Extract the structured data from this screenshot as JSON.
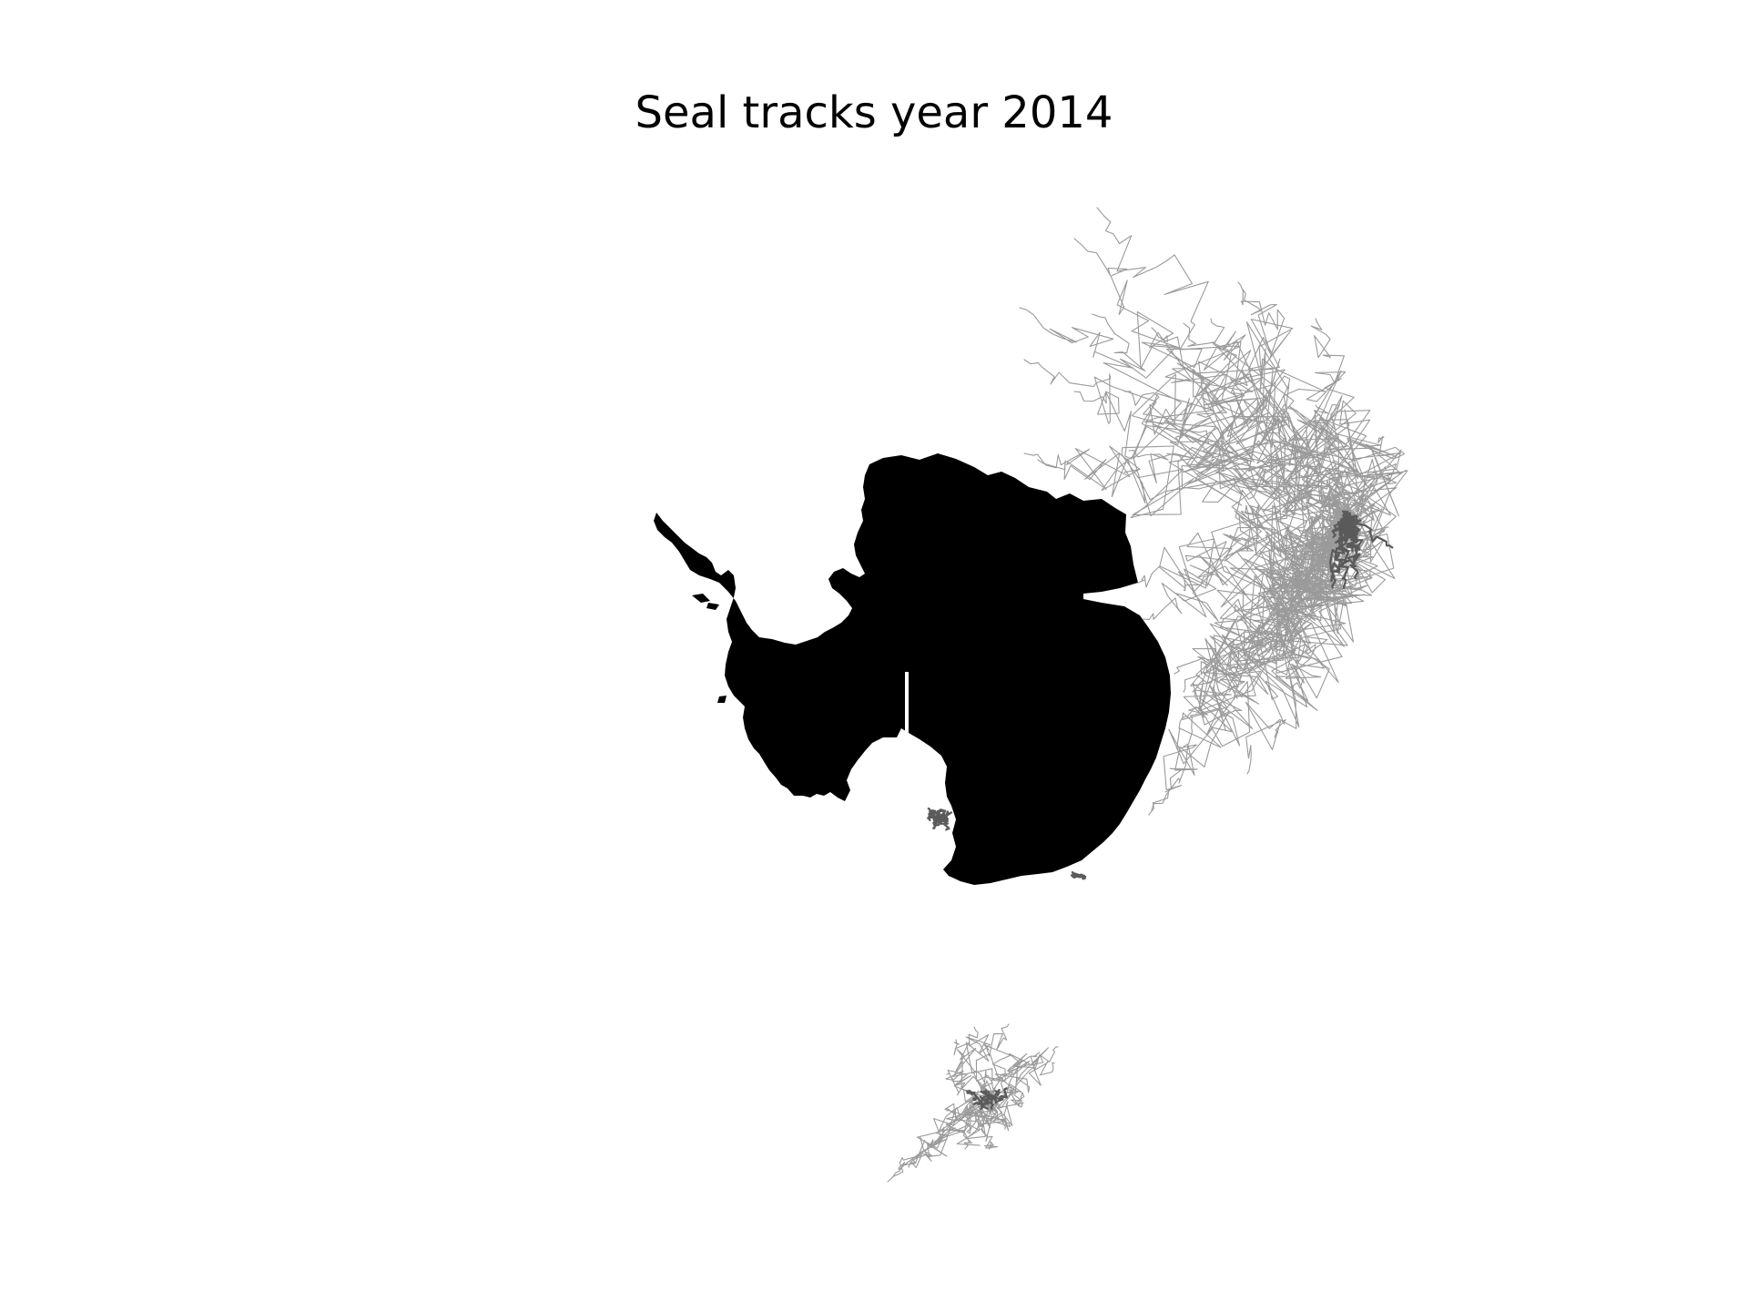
{
  "figure": {
    "title": "Seal tracks year 2014"
  },
  "map": {
    "projection": "south-polar-stereographic",
    "region": "Antarctica",
    "land_color": "#000000",
    "background_color": "#ffffff",
    "track_color": "#9a9a9a",
    "dense_track_color": "#5a5a5a",
    "track_clusters": [
      "east-antarctica-offshore",
      "ross-sea-north",
      "bellingshausen-coast"
    ]
  }
}
